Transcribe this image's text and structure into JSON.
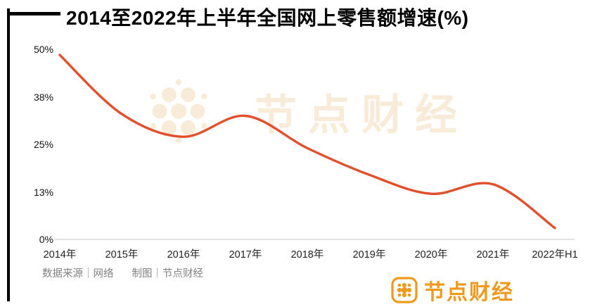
{
  "chart_data": {
    "type": "line",
    "title": "2014至2022年上半年全国网上零售额增速(%)",
    "categories": [
      "2014年",
      "2015年",
      "2016年",
      "2017年",
      "2018年",
      "2019年",
      "2020年",
      "2021年",
      "2022年H1"
    ],
    "values": [
      48.5,
      33,
      27,
      32.5,
      24,
      17,
      12,
      14.5,
      3
    ],
    "unit": "%",
    "ylim": [
      0,
      50
    ],
    "y_ticks": [
      {
        "label": "50%",
        "value": 50
      },
      {
        "label": "38%",
        "value": 37.5
      },
      {
        "label": "25%",
        "value": 25
      },
      {
        "label": "13%",
        "value": 12.5
      },
      {
        "label": "0%",
        "value": 0
      }
    ],
    "line_color": "#e2502b",
    "axis_color": "#cfcfcf",
    "grid": false,
    "legend": "none"
  },
  "watermark": {
    "text": "节点财经",
    "icon": "node-dots-logo",
    "color": "#f8ecd9"
  },
  "footer": {
    "source": "数据来源｜网络",
    "credit": "制图｜节点财经"
  },
  "brand": {
    "name": "节点财经",
    "icon": "node-dots-logo",
    "color": "#ef9a1f"
  }
}
